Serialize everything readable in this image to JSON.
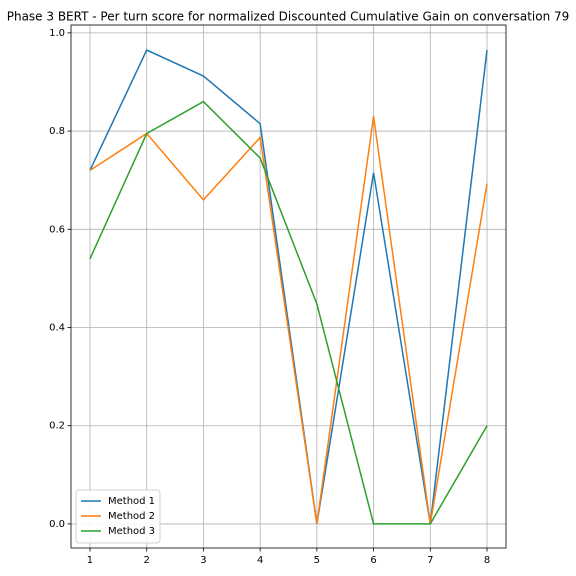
{
  "chart_data": {
    "type": "line",
    "title": "Phase 3 BERT - Per turn score for normalized Discounted Cumulative Gain on conversation 79",
    "x": [
      1,
      2,
      3,
      4,
      5,
      6,
      7,
      8
    ],
    "series": [
      {
        "name": "Method 1",
        "color": "#1f77b4",
        "values": [
          0.72,
          0.965,
          0.912,
          0.815,
          0.0,
          0.715,
          0.0,
          0.965
        ]
      },
      {
        "name": "Method 2",
        "color": "#ff7f0e",
        "values": [
          0.72,
          0.795,
          0.66,
          0.787,
          0.0,
          0.83,
          0.0,
          0.693
        ]
      },
      {
        "name": "Method 3",
        "color": "#2ca02c",
        "values": [
          0.54,
          0.795,
          0.86,
          0.745,
          0.448,
          0.0,
          0.0,
          0.2
        ]
      }
    ],
    "xlim": [
      0.665,
      8.335
    ],
    "ylim": [
      -0.049,
      1.016
    ],
    "xticks": [
      1,
      2,
      3,
      4,
      5,
      6,
      7,
      8
    ],
    "yticks": [
      {
        "value": 0,
        "label": "0.0"
      },
      0.2,
      0.4,
      0.6,
      0.8,
      {
        "value": 1,
        "label": "1.0"
      }
    ],
    "grid": true,
    "legend": "lower left"
  }
}
